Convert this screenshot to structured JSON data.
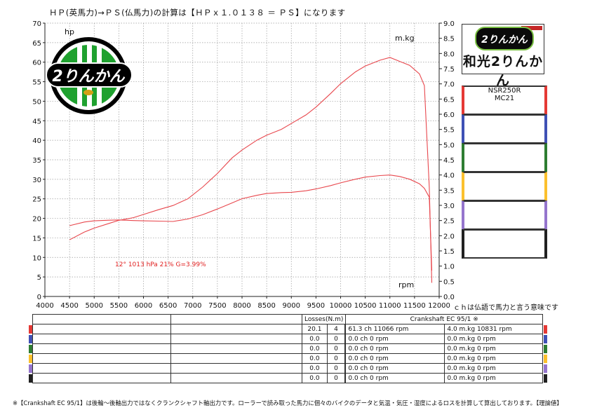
{
  "header": {
    "title": "ＨＰ(英馬力)→ＰＳ(仏馬力)の計算は【ＨＰｘ１.０１３８ ＝ ＰＳ】になります",
    "ch_note": "ｃｈは仏語で馬力と言う意味です"
  },
  "logo": {
    "text": "2りんかん"
  },
  "brand": {
    "badge": "2りんかん",
    "name": "和光2りんかん"
  },
  "vehicles": [
    {
      "line1": "NSR250R",
      "line2": "MC21",
      "color": "#e53935"
    },
    {
      "line1": "",
      "line2": "",
      "color": "#3f51b5"
    },
    {
      "line1": "",
      "line2": "",
      "color": "#2e7d32"
    },
    {
      "line1": "",
      "line2": "",
      "color": "#fbc02d"
    },
    {
      "line1": "",
      "line2": "",
      "color": "#9575cd"
    },
    {
      "line1": "",
      "line2": "",
      "color": "#212121"
    }
  ],
  "chart_data": {
    "type": "line",
    "x_ticks": [
      "4000",
      "4500",
      "5000",
      "5500",
      "6000",
      "6500",
      "7000",
      "7500",
      "8000",
      "8500",
      "9000",
      "9500",
      "10000",
      "10500",
      "11000",
      "11500",
      "12000"
    ],
    "left_ticks": [
      "0",
      "5",
      "10",
      "15",
      "20",
      "25",
      "30",
      "35",
      "40",
      "45",
      "50",
      "55",
      "60",
      "65",
      "70"
    ],
    "right_ticks": [
      "0.0",
      "0.5",
      "1.0",
      "1.5",
      "2.0",
      "2.5",
      "3.0",
      "3.5",
      "4.0",
      "4.5",
      "5.0",
      "5.5",
      "6.0",
      "6.5",
      "7.0",
      "7.5",
      "8.0",
      "8.5",
      "9.0"
    ],
    "xlim": [
      4000,
      12000
    ],
    "ylim_left": [
      0,
      70
    ],
    "ylim_right": [
      0,
      9
    ],
    "left_label": "hp",
    "right_label": "m.kg",
    "x_label": "rpm",
    "conditions": "12°  1013 hPa  21%    G=3.99%",
    "grid": true,
    "series": [
      {
        "axis": "left",
        "color": "#e8474d",
        "x": [
          4500,
          4800,
          5000,
          5300,
          5500,
          5800,
          6000,
          6300,
          6600,
          6900,
          7200,
          7500,
          7800,
          8000,
          8300,
          8500,
          8800,
          9000,
          9300,
          9500,
          9800,
          10000,
          10300,
          10500,
          10800,
          11000,
          11200,
          11400,
          11600,
          11700,
          11800,
          11850
        ],
        "y": [
          14.5,
          16.5,
          17.5,
          18.7,
          19.5,
          20.2,
          21.0,
          22.2,
          23.3,
          25.0,
          28.0,
          31.5,
          35.5,
          37.5,
          40.0,
          41.3,
          42.8,
          44.3,
          46.5,
          48.5,
          52.0,
          54.5,
          57.5,
          59.0,
          60.5,
          61.2,
          60.2,
          59.2,
          57.0,
          54.0,
          28.0,
          3.5
        ]
      },
      {
        "axis": "right",
        "color": "#e8474d",
        "x": [
          4500,
          4800,
          5000,
          5300,
          5500,
          5800,
          6000,
          6300,
          6600,
          6900,
          7200,
          7500,
          7800,
          8000,
          8300,
          8500,
          8800,
          9000,
          9300,
          9500,
          9800,
          10000,
          10300,
          10500,
          10800,
          11000,
          11200,
          11400,
          11600,
          11700,
          11800,
          11850
        ],
        "y": [
          2.33,
          2.45,
          2.49,
          2.51,
          2.52,
          2.5,
          2.49,
          2.48,
          2.47,
          2.55,
          2.69,
          2.88,
          3.08,
          3.22,
          3.33,
          3.39,
          3.42,
          3.43,
          3.48,
          3.54,
          3.65,
          3.74,
          3.86,
          3.93,
          3.98,
          4.0,
          3.95,
          3.86,
          3.71,
          3.56,
          3.27,
          0.85
        ]
      }
    ]
  },
  "table": {
    "losses_label": "Losses(N.m)",
    "crank_label": "Crankshaft EC 95/1 ※",
    "rows": [
      {
        "l1": "20.1",
        "l2": "4",
        "hp": "61.3 ch 11066 rpm",
        "tq": "4.0 m.kg 10831 rpm",
        "color": "#e53935"
      },
      {
        "l1": "0.0",
        "l2": "0",
        "hp": "0.0 ch 0 rpm",
        "tq": "0.0 m.kg 0 rpm",
        "color": "#3f51b5"
      },
      {
        "l1": "0.0",
        "l2": "0",
        "hp": "0.0 ch 0 rpm",
        "tq": "0.0 m.kg 0 rpm",
        "color": "#2e7d32"
      },
      {
        "l1": "0.0",
        "l2": "0",
        "hp": "0.0 ch 0 rpm",
        "tq": "0.0 m.kg 0 rpm",
        "color": "#fbc02d"
      },
      {
        "l1": "0.0",
        "l2": "0",
        "hp": "0.0 ch 0 rpm",
        "tq": "0.0 m.kg 0 rpm",
        "color": "#9575cd"
      },
      {
        "l1": "0.0",
        "l2": "0",
        "hp": "0.0 ch 0 rpm",
        "tq": "0.0 m.kg 0 rpm",
        "color": "#212121"
      }
    ]
  },
  "footer": "※【Crankshaft EC 95/1】は後輪～後軸出力ではなくクランクシャフト軸出力です。ローラーで読み取った馬力に個々のバイクのデータと気温・気圧・湿度によるロスを計算して算出しております。【理論値】"
}
